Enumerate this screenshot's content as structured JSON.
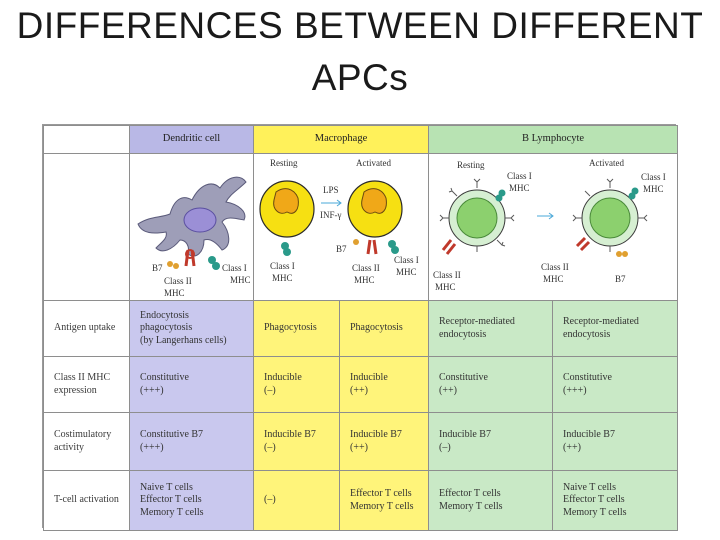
{
  "title_line1": "DIFFERENCES BETWEEN DIFFERENT",
  "title_line2": "APCs",
  "headers": {
    "dendritic": "Dendritic cell",
    "macrophage": "Macrophage",
    "b_lymphocyte": "B Lymphocyte"
  },
  "figure_labels": {
    "dendritic": {
      "b7": "B7",
      "class1": "Class I",
      "mhc1": "MHC",
      "class2": "Class II",
      "mhc2": "MHC"
    },
    "macrophage": {
      "resting": "Resting",
      "activated": "Activated",
      "lps": "LPS",
      "inf": "INF-γ",
      "b7": "B7",
      "class1": "Class I",
      "mhc1": "MHC",
      "class2": "Class II",
      "mhc2": "MHC",
      "class1b": "Class I",
      "mhc1b": "MHC"
    },
    "b_lymphocyte": {
      "resting": "Resting",
      "activated": "Activated",
      "class1": "Class I",
      "mhc1": "MHC",
      "class2": "Class II",
      "mhc2": "MHC",
      "class1b": "Class I",
      "mhc1b": "MHC",
      "class2b": "Class II",
      "mhc2b": "MHC",
      "b7": "B7"
    }
  },
  "rows": [
    {
      "label": [
        "Antigen uptake"
      ],
      "dendritic": [
        "Endocytosis",
        "phagocytosis",
        "(by Langerhans cells)"
      ],
      "mac_resting": [
        "Phagocytosis"
      ],
      "mac_activated": [
        "Phagocytosis"
      ],
      "b_resting": [
        "Receptor-mediated",
        "endocytosis"
      ],
      "b_activated": [
        "Receptor-mediated",
        "endocytosis"
      ]
    },
    {
      "label": [
        "Class II MHC",
        "expression"
      ],
      "dendritic": [
        "Constitutive",
        "(+++)"
      ],
      "mac_resting": [
        "Inducible",
        "(–)"
      ],
      "mac_activated": [
        "Inducible",
        "(++)"
      ],
      "b_resting": [
        "Constitutive",
        "(++)"
      ],
      "b_activated": [
        "Constitutive",
        "(+++)"
      ]
    },
    {
      "label": [
        "Costimulatory",
        "activity"
      ],
      "dendritic": [
        "Constitutive B7",
        "(+++)"
      ],
      "mac_resting": [
        "Inducible B7",
        "(–)"
      ],
      "mac_activated": [
        "Inducible B7",
        "(++)"
      ],
      "b_resting": [
        "Inducible B7",
        "(–)"
      ],
      "b_activated": [
        "Inducible B7",
        "(++)"
      ]
    },
    {
      "label": [
        "T-cell activation"
      ],
      "dendritic": [
        "Naive T cells",
        "Effector T cells",
        "Memory T cells"
      ],
      "mac_resting": [
        "(–)"
      ],
      "mac_activated": [
        "Effector T cells",
        "Memory T cells"
      ],
      "b_resting": [
        "Effector T cells",
        "Memory T cells"
      ],
      "b_activated": [
        "Naive T cells",
        "Effector T cells",
        "Memory T cells"
      ]
    }
  ]
}
